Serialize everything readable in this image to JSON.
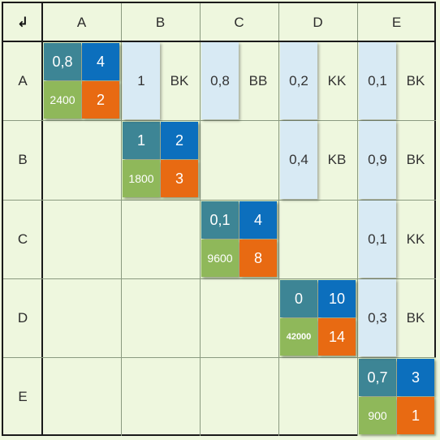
{
  "corner_symbol": "↲",
  "columns": [
    "A",
    "B",
    "C",
    "D",
    "E"
  ],
  "rows": [
    "A",
    "B",
    "C",
    "D",
    "E"
  ],
  "diagonal": [
    {
      "top_left": "0,8",
      "top_right": "4",
      "bottom_left": "2400",
      "bottom_right": "2"
    },
    {
      "top_left": "1",
      "top_right": "2",
      "bottom_left": "1800",
      "bottom_right": "3"
    },
    {
      "top_left": "0,1",
      "top_right": "4",
      "bottom_left": "9600",
      "bottom_right": "8"
    },
    {
      "top_left": "0",
      "top_right": "10",
      "bottom_left": "42000",
      "bottom_right": "14"
    },
    {
      "top_left": "0,7",
      "top_right": "3",
      "bottom_left": "900",
      "bottom_right": "1"
    }
  ],
  "links": [
    {
      "row": "A",
      "col": "B",
      "value": "1",
      "code": "BK"
    },
    {
      "row": "A",
      "col": "C",
      "value": "0,8",
      "code": "BB"
    },
    {
      "row": "A",
      "col": "D",
      "value": "0,2",
      "code": "KK"
    },
    {
      "row": "A",
      "col": "E",
      "value": "0,1",
      "code": "BK"
    },
    {
      "row": "B",
      "col": "D",
      "value": "0,4",
      "code": "KB"
    },
    {
      "row": "B",
      "col": "E",
      "value": "0,9",
      "code": "BK"
    },
    {
      "row": "C",
      "col": "E",
      "value": "0,1",
      "code": "KK"
    },
    {
      "row": "D",
      "col": "E",
      "value": "0,3",
      "code": "BK"
    }
  ],
  "colors": {
    "teal": "#3d8595",
    "blue": "#0c6fbd",
    "green": "#8fb85a",
    "orange": "#e86a12",
    "bar": "#d8eaf4",
    "background": "#eef7de"
  }
}
